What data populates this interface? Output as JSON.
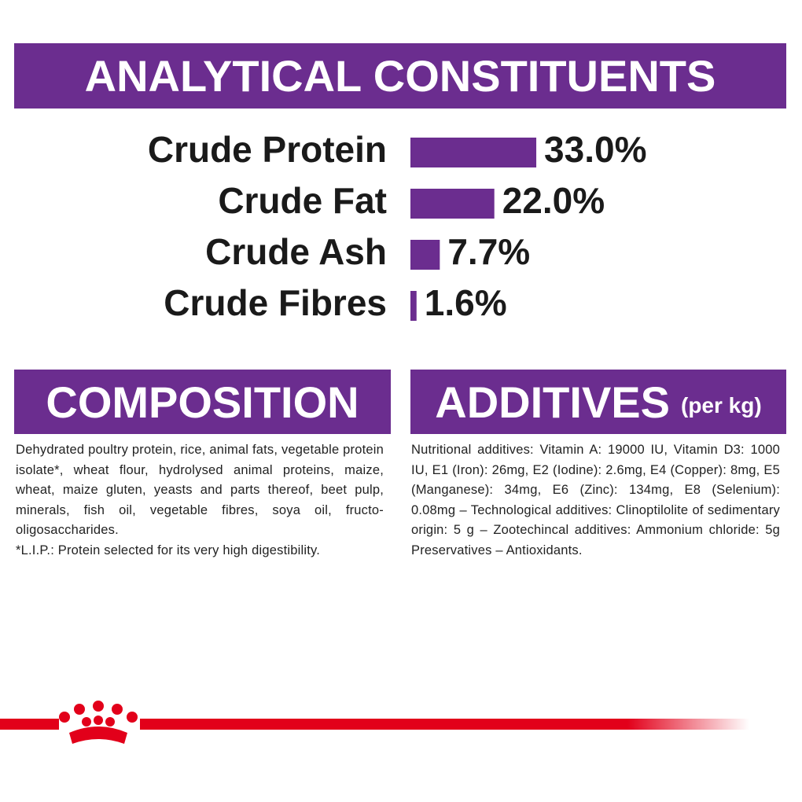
{
  "chart_data": {
    "type": "bar",
    "orientation": "horizontal",
    "title": "ANALYTICAL CONSTITUENTS",
    "categories": [
      "Crude Protein",
      "Crude Fat",
      "Crude Ash",
      "Crude Fibres"
    ],
    "values": [
      33.0,
      22.0,
      7.7,
      1.6
    ],
    "value_labels": [
      "33.0%",
      "22.0%",
      "7.7%",
      "1.6%"
    ],
    "color": "#6b2d8f"
  },
  "composition": {
    "title": "COMPOSITION",
    "text": "Dehydrated poultry protein, rice, animal fats, vegetable protein isolate*, wheat flour, hydrolysed animal proteins, maize, wheat, maize gluten, yeasts and parts thereof, beet pulp, minerals, fish oil, vegetable fibres, soya oil, fructo-oligosaccharides.",
    "note": "*L.I.P.: Protein selected for its very high digestibility."
  },
  "additives": {
    "title": "ADDITIVES",
    "title_note": "(per kg)",
    "text": "Nutritional additives: Vitamin A: 19000 IU, Vitamin D3: 1000 IU, E1 (Iron): 26mg, E2 (Iodine): 2.6mg, E4 (Copper): 8mg, E5 (Manganese): 34mg, E6 (Zinc): 134mg, E8 (Selenium): 0.08mg – Technological additives: Clinoptilolite of sedimentary origin: 5 g – Zootechincal additives: Ammonium chloride: 5g Preservatives – Antioxidants."
  }
}
